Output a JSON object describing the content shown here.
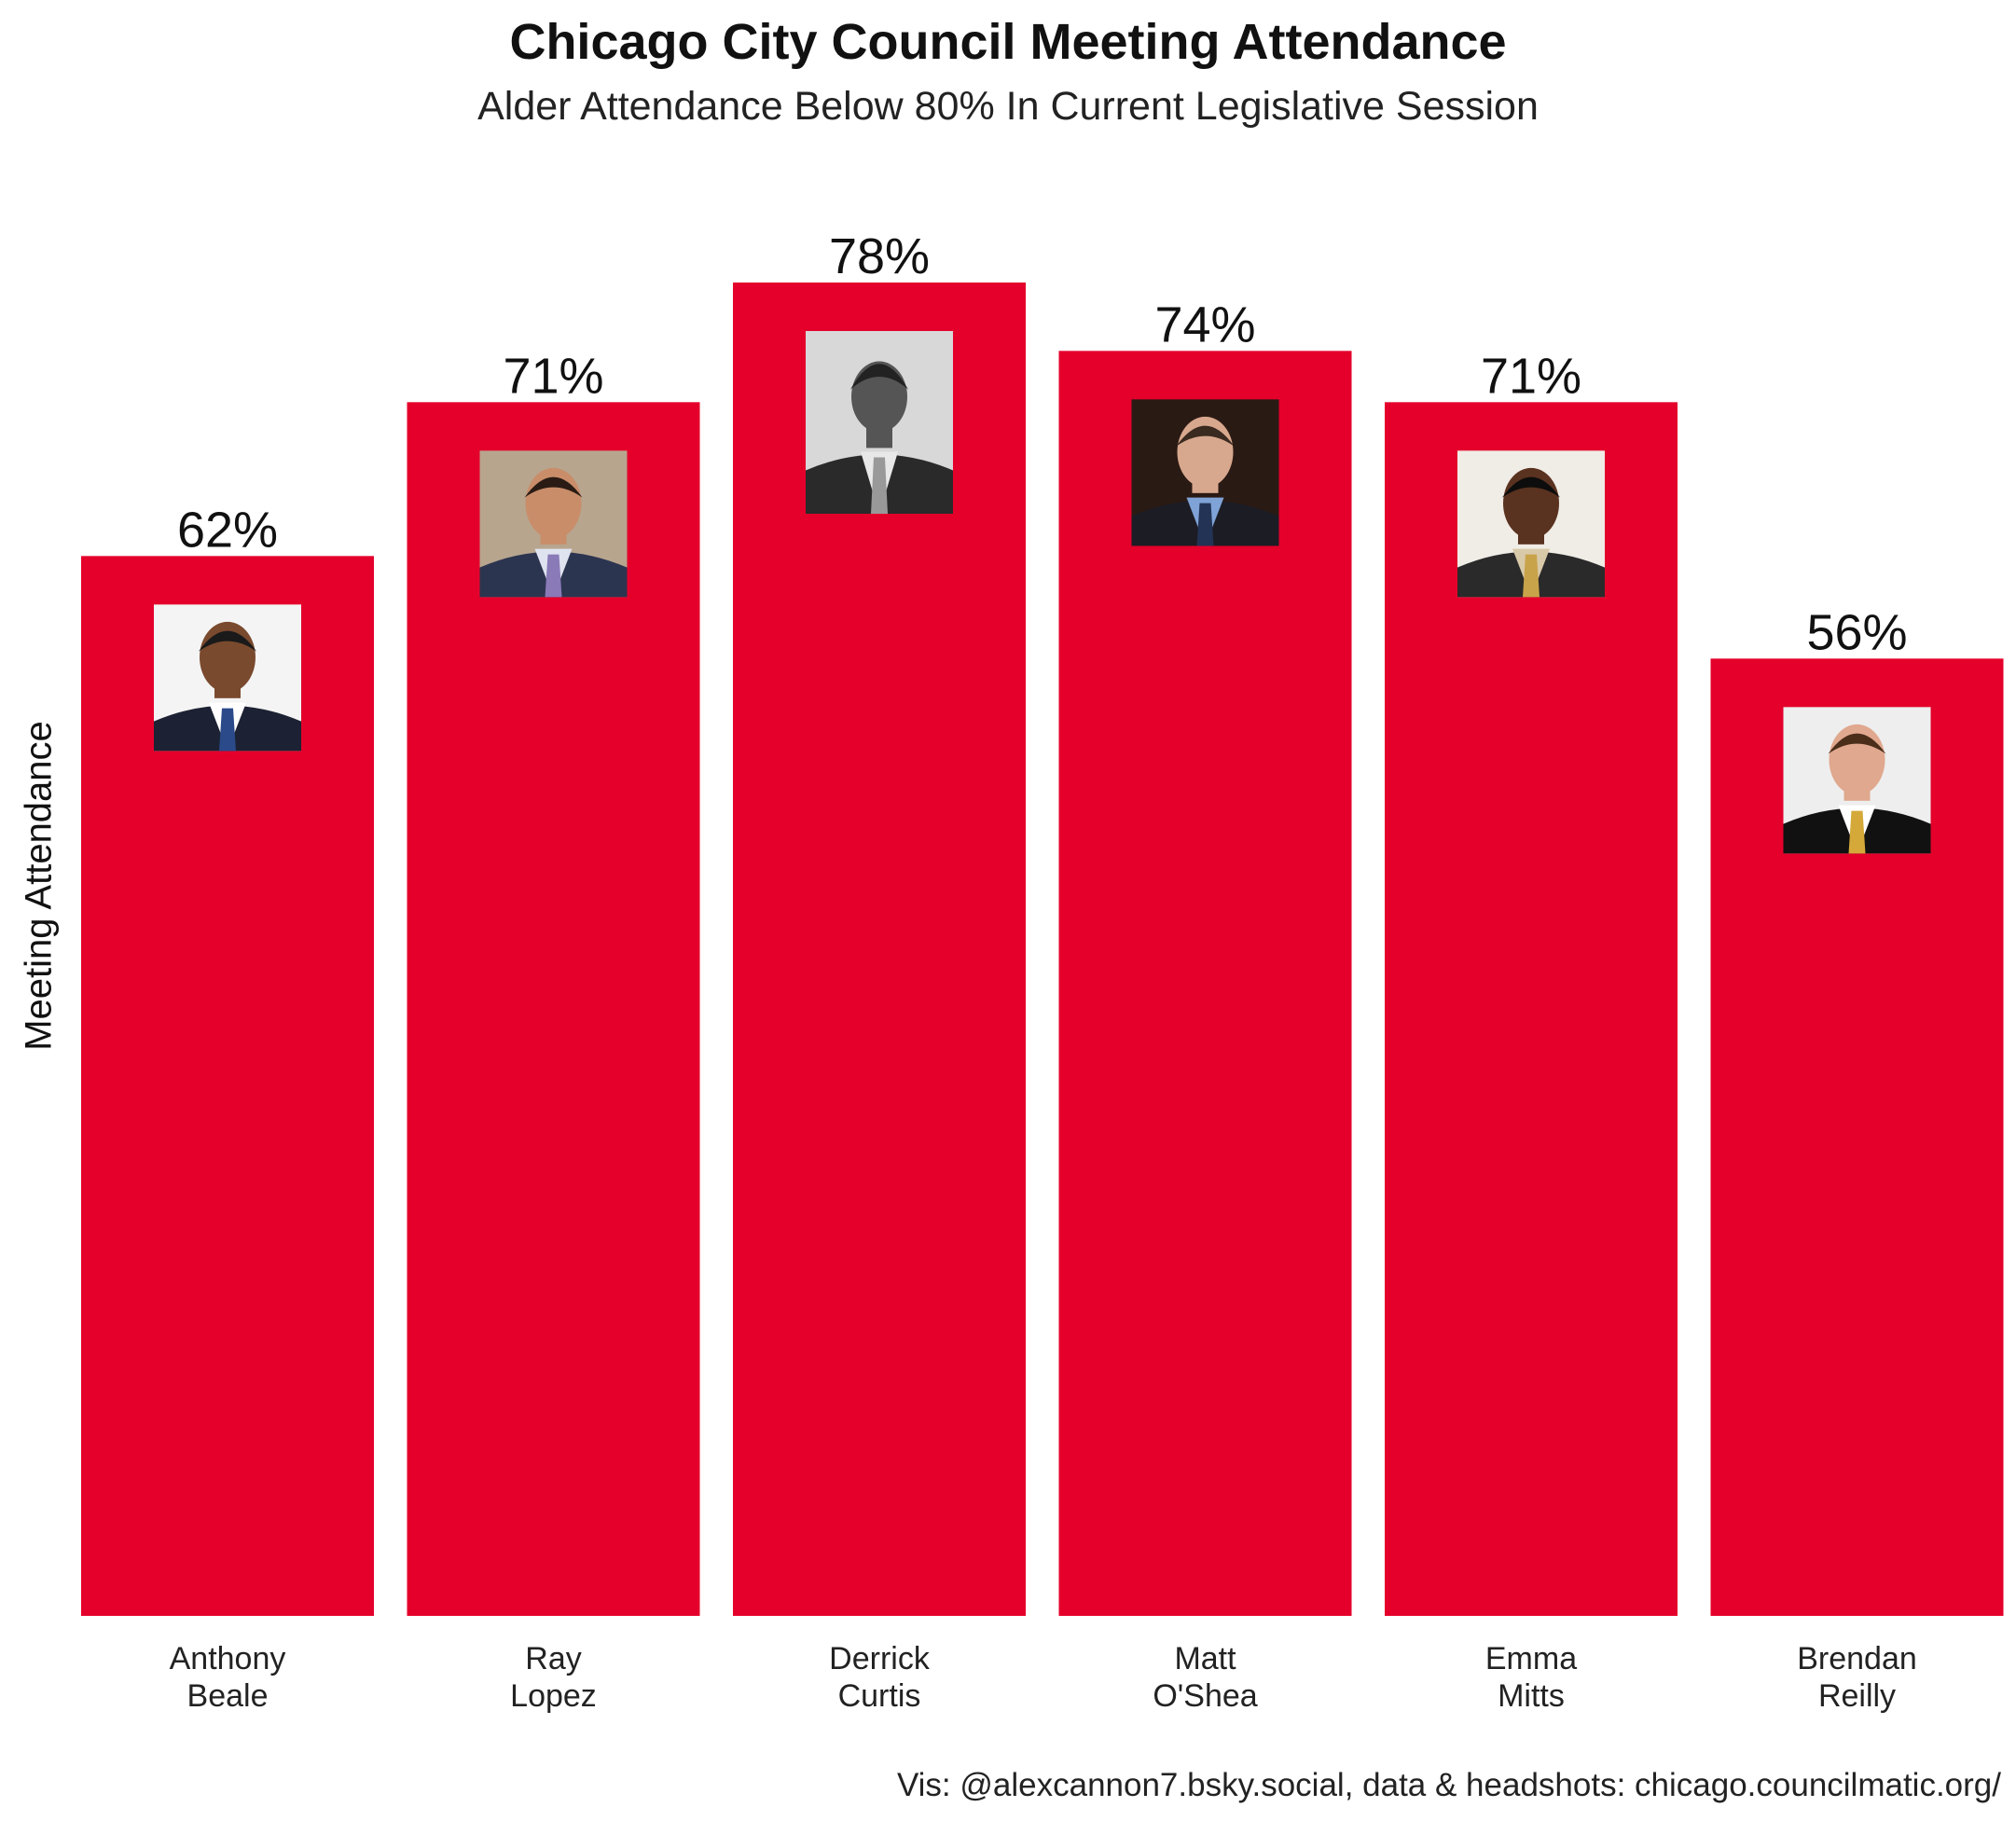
{
  "header": {
    "title": "Chicago City Council Meeting Attendance",
    "subtitle": "Alder Attendance Below 80% In Current Legislative Session"
  },
  "caption": "Vis: @alexcannon7.bsky.social, data & headshots: chicago.councilmatic.org/",
  "colors": {
    "bar": "#e4002b"
  },
  "chart_data": {
    "type": "bar",
    "title": "Chicago City Council Meeting Attendance",
    "subtitle": "Alder Attendance Below 80% In Current Legislative Session",
    "xlabel": "",
    "ylabel": "Meeting Attendance",
    "categories": [
      [
        "Anthony",
        "Beale"
      ],
      [
        "Ray",
        "Lopez"
      ],
      [
        "Derrick",
        "Curtis"
      ],
      [
        "Matt",
        "O'Shea"
      ],
      [
        "Emma",
        "Mitts"
      ],
      [
        "Brendan",
        "Reilly"
      ]
    ],
    "values": [
      62,
      71,
      78,
      74,
      71,
      56
    ],
    "data_labels": [
      "62%",
      "71%",
      "78%",
      "74%",
      "71%",
      "56%"
    ],
    "ylim": [
      0,
      78
    ],
    "grid": false,
    "legend": "none",
    "headshots": [
      {
        "skin": "#7a4a2e",
        "hair": "#1a1a1a",
        "suit": "#1c2233",
        "shirt": "#ffffff",
        "tie": "#2a4a8a",
        "bg": "#f4f4f4",
        "gray": false
      },
      {
        "skin": "#c98d6a",
        "hair": "#2a1c14",
        "suit": "#2c3550",
        "shirt": "#dfe3f0",
        "tie": "#8a7ab8",
        "bg": "#b7a58e",
        "gray": false
      },
      {
        "skin": "#555555",
        "hair": "#222222",
        "suit": "#2a2a2a",
        "shirt": "#e8e8e8",
        "tie": "#999999",
        "bg": "#d8d8d8",
        "gray": true
      },
      {
        "skin": "#d8a88e",
        "hair": "#3a2a20",
        "suit": "#1c1c24",
        "shirt": "#7fa3d6",
        "tie": "#223355",
        "bg": "#2a1a14",
        "gray": false
      },
      {
        "skin": "#5a3220",
        "hair": "#0d0d0d",
        "suit": "#2a2a2a",
        "shirt": "#d8c9a8",
        "tie": "#c9a34a",
        "bg": "#f0ece6",
        "gray": false
      },
      {
        "skin": "#e0a88e",
        "hair": "#4a2e1a",
        "suit": "#111111",
        "shirt": "#ffffff",
        "tie": "#d4a93a",
        "bg": "#eeeeee",
        "gray": false
      }
    ]
  }
}
